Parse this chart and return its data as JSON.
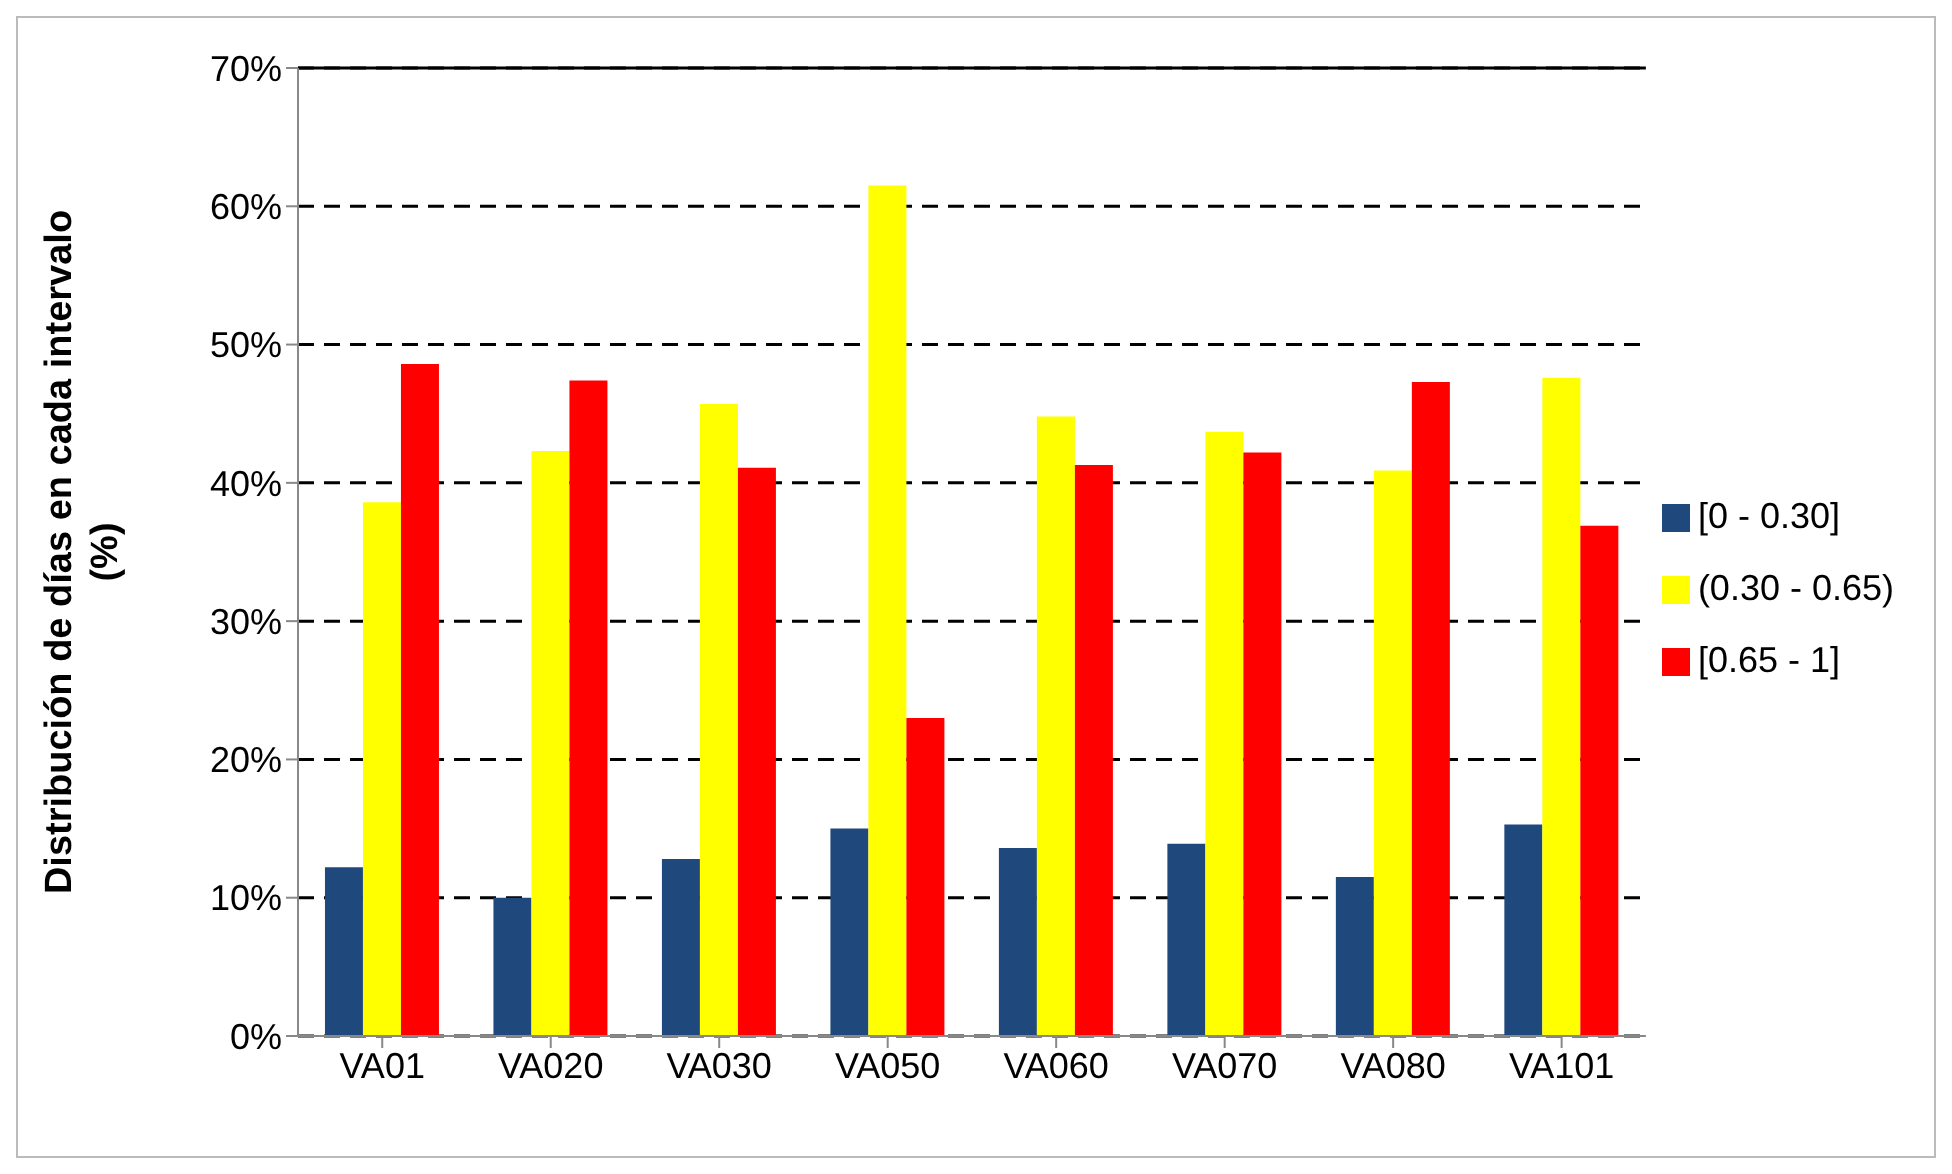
{
  "chart_data": {
    "type": "bar",
    "ylabel": "Distribución de días en cada intervalo (%)",
    "categories": [
      "VA01",
      "VA020",
      "VA030",
      "VA050",
      "VA060",
      "VA070",
      "VA080",
      "VA101"
    ],
    "series": [
      {
        "name": "[0 - 0.30]",
        "color": "#1f497d",
        "values": [
          12.2,
          10.0,
          12.8,
          15.0,
          13.6,
          13.9,
          11.5,
          15.3
        ]
      },
      {
        "name": "(0.30 - 0.65)",
        "color": "#ffff00",
        "values": [
          38.6,
          42.3,
          45.7,
          61.5,
          44.8,
          43.7,
          40.9,
          47.6
        ]
      },
      {
        "name": "[0.65 - 1]",
        "color": "#ff0000",
        "values": [
          48.6,
          47.4,
          41.1,
          23.0,
          41.3,
          42.2,
          47.3,
          36.9
        ]
      }
    ],
    "ylim": [
      0,
      70
    ],
    "yticks": [
      {
        "value": 0,
        "label": "0%"
      },
      {
        "value": 10,
        "label": "10%"
      },
      {
        "value": 20,
        "label": "20%"
      },
      {
        "value": 30,
        "label": "30%"
      },
      {
        "value": 40,
        "label": "40%"
      },
      {
        "value": 50,
        "label": "50%"
      },
      {
        "value": 60,
        "label": "60%"
      },
      {
        "value": 70,
        "label": "70%"
      }
    ],
    "grid": "y",
    "legend": "right"
  }
}
